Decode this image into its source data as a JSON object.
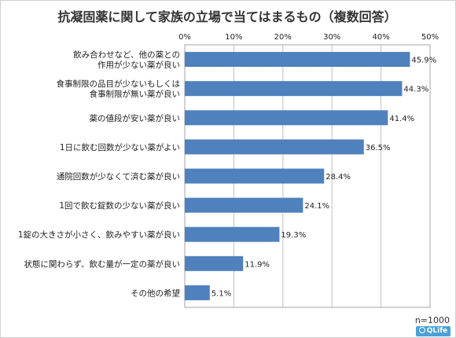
{
  "chart_data": {
    "type": "bar",
    "orientation": "horizontal",
    "title": "抗凝固薬に関して家族の立場で当てはまるもの（複数回答）",
    "categories": [
      [
        "飲み合わせなど、他の薬との",
        "作用が少ない薬が良い"
      ],
      [
        "食事制限の品目が少ないもしくは",
        "食事制限が無い薬が良い"
      ],
      [
        "薬の値段が安い薬が良い"
      ],
      [
        "1日に飲む回数が少ない薬がよい"
      ],
      [
        "通院回数が少なくて済む薬が良い"
      ],
      [
        "1回で飲む錠数の少ない薬が良い"
      ],
      [
        "1錠の大きさが小さく、飲みやすい薬が良い"
      ],
      [
        "状態に関わらず、飲む量が一定の薬が良い"
      ],
      [
        "その他の希望"
      ]
    ],
    "values": [
      45.9,
      44.3,
      41.4,
      36.5,
      28.4,
      24.1,
      19.3,
      11.9,
      5.1
    ],
    "value_labels": [
      "45.9%",
      "44.3%",
      "41.4%",
      "36.5%",
      "28.4%",
      "24.1%",
      "19.3%",
      "11.9%",
      "5.1%"
    ],
    "xlim": [
      0,
      50
    ],
    "xticks": [
      "0%",
      "10%",
      "20%",
      "30%",
      "40%",
      "50%"
    ],
    "grid": true,
    "bar_color": "#4f81bd",
    "grid_color": "#c0c0c0",
    "note": "n=1000"
  },
  "badge": {
    "text": "QLife"
  }
}
